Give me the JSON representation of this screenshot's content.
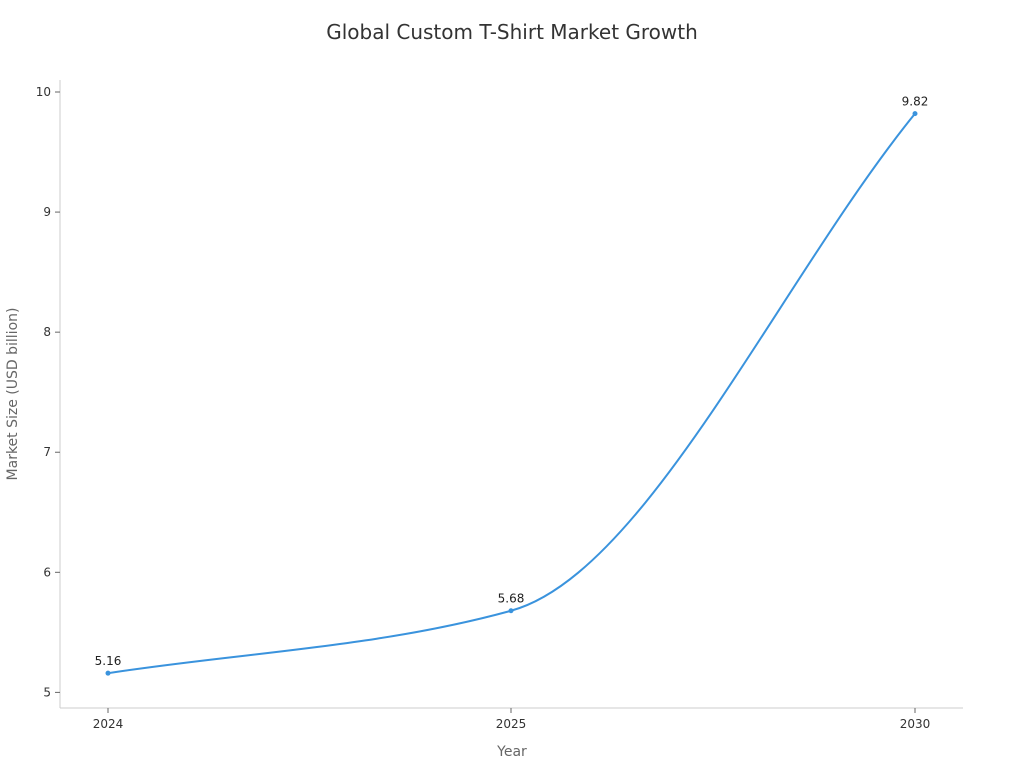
{
  "chart_data": {
    "type": "line",
    "title": "Global Custom T-Shirt Market Growth",
    "xlabel": "Year",
    "ylabel": "Market Size (USD billion)",
    "categories": [
      "2024",
      "2025",
      "2030"
    ],
    "series": [
      {
        "values": [
          5.16,
          5.68,
          9.82
        ],
        "color": "#3a93dd"
      }
    ],
    "data_labels": [
      "5.16",
      "5.68",
      "9.82"
    ],
    "y_ticks": [
      5,
      6,
      7,
      8,
      9,
      10
    ],
    "y_tick_labels": [
      "5",
      "6",
      "7",
      "8",
      "9",
      "10"
    ],
    "ylim": [
      4.87,
      10.1
    ],
    "grid": false,
    "legend": false,
    "line_style": "smooth"
  }
}
